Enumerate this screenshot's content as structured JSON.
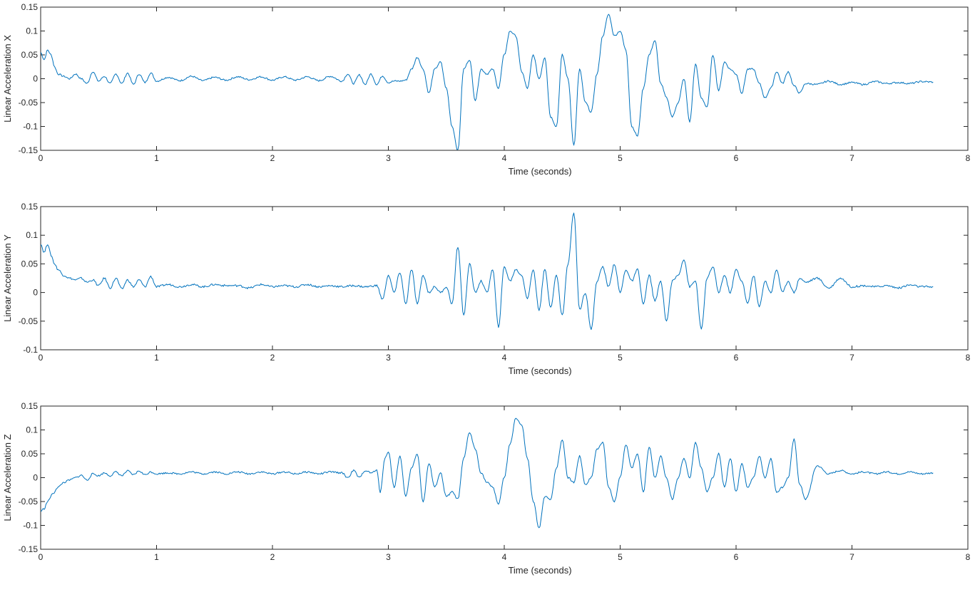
{
  "chart_data": [
    {
      "type": "line",
      "xlabel": "Time (seconds)",
      "ylabel": "Linear Acceleration X",
      "xlim": [
        0,
        8
      ],
      "ylim": [
        -0.15,
        0.15
      ],
      "xticks": [
        "0",
        "1",
        "2",
        "3",
        "4",
        "5",
        "6",
        "7",
        "8"
      ],
      "yticks": [
        "-0.15",
        "-0.1",
        "-0.05",
        "0",
        "0.05",
        "0.1",
        "0.15"
      ],
      "grid": false,
      "line_color": "#0072BD",
      "series": [
        {
          "x": [
            0,
            0.03,
            0.06,
            0.09,
            0.12,
            0.15,
            0.2,
            0.25,
            0.3,
            0.35,
            0.4,
            0.45,
            0.5,
            0.55,
            0.6,
            0.65,
            0.7,
            0.75,
            0.8,
            0.85,
            0.9,
            0.95,
            1.0,
            1.1,
            1.2,
            1.3,
            1.4,
            1.5,
            1.6,
            1.7,
            1.8,
            1.9,
            2.0,
            2.1,
            2.2,
            2.3,
            2.4,
            2.5,
            2.6,
            2.65,
            2.7,
            2.75,
            2.8,
            2.85,
            2.9,
            2.95,
            3.0,
            3.05,
            3.1,
            3.15,
            3.2,
            3.25,
            3.3,
            3.35,
            3.4,
            3.45,
            3.5,
            3.55,
            3.6,
            3.65,
            3.7,
            3.75,
            3.8,
            3.85,
            3.9,
            3.95,
            4.0,
            4.05,
            4.1,
            4.15,
            4.2,
            4.25,
            4.3,
            4.35,
            4.4,
            4.45,
            4.5,
            4.55,
            4.6,
            4.65,
            4.7,
            4.75,
            4.8,
            4.85,
            4.9,
            4.95,
            5.0,
            5.05,
            5.1,
            5.15,
            5.2,
            5.25,
            5.3,
            5.35,
            5.4,
            5.45,
            5.5,
            5.55,
            5.6,
            5.65,
            5.7,
            5.75,
            5.8,
            5.85,
            5.9,
            5.95,
            6.0,
            6.05,
            6.1,
            6.15,
            6.2,
            6.25,
            6.3,
            6.35,
            6.4,
            6.45,
            6.5,
            6.55,
            6.6,
            6.7,
            6.8,
            6.9,
            7.0,
            7.1,
            7.2,
            7.3,
            7.4,
            7.5,
            7.6,
            7.7
          ],
          "y": [
            0.055,
            0.04,
            0.06,
            0.05,
            0.025,
            0.01,
            0.005,
            0.0,
            0.01,
            0.0,
            -0.01,
            0.015,
            -0.005,
            0.005,
            -0.01,
            0.01,
            -0.01,
            0.012,
            -0.012,
            0.01,
            -0.008,
            0.012,
            -0.005,
            0.003,
            -0.004,
            0.005,
            -0.004,
            0.003,
            -0.003,
            0.004,
            -0.002,
            0.004,
            -0.003,
            0.004,
            -0.003,
            0.004,
            -0.004,
            0.005,
            -0.005,
            0.01,
            -0.01,
            0.008,
            -0.012,
            0.01,
            -0.012,
            0.006,
            -0.008,
            -0.005,
            -0.005,
            -0.003,
            0.02,
            0.045,
            0.02,
            -0.03,
            0.02,
            0.035,
            -0.02,
            -0.1,
            -0.15,
            0.02,
            0.04,
            -0.045,
            0.02,
            0.01,
            0.02,
            -0.02,
            0.05,
            0.1,
            0.09,
            0.015,
            -0.02,
            0.05,
            0.0,
            0.045,
            -0.08,
            -0.1,
            0.05,
            0.0,
            -0.14,
            0.02,
            -0.05,
            -0.07,
            0.01,
            0.09,
            0.135,
            0.09,
            0.1,
            0.06,
            -0.1,
            -0.12,
            -0.02,
            0.05,
            0.08,
            -0.01,
            -0.04,
            -0.08,
            -0.05,
            0.0,
            -0.09,
            0.03,
            -0.04,
            -0.06,
            0.05,
            -0.025,
            0.035,
            0.02,
            0.01,
            -0.03,
            0.02,
            0.02,
            -0.01,
            -0.04,
            -0.02,
            0.015,
            -0.01,
            0.015,
            -0.015,
            -0.03,
            -0.01,
            -0.012,
            -0.005,
            -0.012,
            -0.008,
            -0.012,
            -0.006,
            -0.01,
            -0.008,
            -0.01,
            -0.006,
            -0.007
          ]
        }
      ]
    },
    {
      "type": "line",
      "xlabel": "Time (seconds)",
      "ylabel": "Linear Acceleration Y",
      "xlim": [
        0,
        8
      ],
      "ylim": [
        -0.1,
        0.15
      ],
      "xticks": [
        "0",
        "1",
        "2",
        "3",
        "4",
        "5",
        "6",
        "7",
        "8"
      ],
      "yticks": [
        "-0.1",
        "-0.05",
        "0",
        "0.05",
        "0.1",
        "0.15"
      ],
      "grid": false,
      "line_color": "#0072BD",
      "series": [
        {
          "x": [
            0,
            0.03,
            0.06,
            0.09,
            0.12,
            0.15,
            0.2,
            0.25,
            0.3,
            0.35,
            0.4,
            0.45,
            0.5,
            0.55,
            0.6,
            0.65,
            0.7,
            0.75,
            0.8,
            0.85,
            0.9,
            0.95,
            1.0,
            1.1,
            1.2,
            1.3,
            1.4,
            1.5,
            1.6,
            1.7,
            1.8,
            1.9,
            2.0,
            2.1,
            2.2,
            2.3,
            2.4,
            2.5,
            2.6,
            2.7,
            2.8,
            2.9,
            2.95,
            3.0,
            3.05,
            3.1,
            3.15,
            3.2,
            3.25,
            3.3,
            3.35,
            3.4,
            3.45,
            3.5,
            3.55,
            3.6,
            3.65,
            3.7,
            3.75,
            3.8,
            3.85,
            3.9,
            3.95,
            4.0,
            4.05,
            4.1,
            4.15,
            4.2,
            4.25,
            4.3,
            4.35,
            4.4,
            4.45,
            4.5,
            4.55,
            4.6,
            4.65,
            4.7,
            4.75,
            4.8,
            4.85,
            4.9,
            4.95,
            5.0,
            5.05,
            5.1,
            5.15,
            5.2,
            5.25,
            5.3,
            5.35,
            5.4,
            5.45,
            5.5,
            5.55,
            5.6,
            5.65,
            5.7,
            5.75,
            5.8,
            5.85,
            5.9,
            5.95,
            6.0,
            6.05,
            6.1,
            6.15,
            6.2,
            6.25,
            6.3,
            6.35,
            6.4,
            6.45,
            6.5,
            6.55,
            6.6,
            6.7,
            6.8,
            6.9,
            7.0,
            7.1,
            7.2,
            7.3,
            7.4,
            7.5,
            7.6,
            7.7
          ],
          "y": [
            0.085,
            0.07,
            0.085,
            0.065,
            0.05,
            0.04,
            0.03,
            0.025,
            0.022,
            0.025,
            0.018,
            0.022,
            0.012,
            0.025,
            0.008,
            0.025,
            0.006,
            0.022,
            0.01,
            0.022,
            0.01,
            0.028,
            0.01,
            0.014,
            0.01,
            0.014,
            0.01,
            0.014,
            0.012,
            0.012,
            0.008,
            0.014,
            0.01,
            0.012,
            0.01,
            0.014,
            0.01,
            0.012,
            0.01,
            0.012,
            0.01,
            0.012,
            -0.012,
            0.03,
            0.0,
            0.035,
            -0.02,
            0.04,
            -0.02,
            0.03,
            0.0,
            0.01,
            0.0,
            0.01,
            -0.02,
            0.08,
            -0.04,
            0.05,
            0.0,
            0.02,
            0.0,
            0.04,
            -0.06,
            0.045,
            0.02,
            0.04,
            0.03,
            -0.01,
            0.04,
            -0.03,
            0.04,
            -0.025,
            0.03,
            -0.04,
            0.05,
            0.14,
            -0.03,
            0.0,
            -0.065,
            0.02,
            0.045,
            0.01,
            0.05,
            0.0,
            0.04,
            0.02,
            0.04,
            -0.02,
            0.03,
            -0.015,
            0.02,
            -0.05,
            0.02,
            0.03,
            0.058,
            0.01,
            0.02,
            -0.065,
            0.025,
            0.045,
            0.0,
            0.03,
            0.0,
            0.04,
            0.02,
            -0.02,
            0.03,
            -0.025,
            0.02,
            0.0,
            0.04,
            0.0,
            0.02,
            0.0,
            0.025,
            0.018,
            0.025,
            0.008,
            0.025,
            0.01,
            0.012,
            0.01,
            0.012,
            0.008,
            0.013,
            0.01,
            0.01
          ]
        }
      ]
    },
    {
      "type": "line",
      "xlabel": "Time (seconds)",
      "ylabel": "Linear Acceleration Z",
      "xlim": [
        0,
        8
      ],
      "ylim": [
        -0.15,
        0.15
      ],
      "xticks": [
        "0",
        "1",
        "2",
        "3",
        "4",
        "5",
        "6",
        "7",
        "8"
      ],
      "yticks": [
        "-0.15",
        "-0.1",
        "-0.05",
        "0",
        "0.05",
        "0.1",
        "0.15"
      ],
      "grid": false,
      "line_color": "#0072BD",
      "series": [
        {
          "x": [
            0,
            0.03,
            0.06,
            0.1,
            0.15,
            0.2,
            0.25,
            0.3,
            0.35,
            0.4,
            0.45,
            0.5,
            0.55,
            0.6,
            0.65,
            0.7,
            0.75,
            0.8,
            0.85,
            0.9,
            0.95,
            1.0,
            1.1,
            1.2,
            1.3,
            1.4,
            1.5,
            1.6,
            1.7,
            1.8,
            1.9,
            2.0,
            2.1,
            2.2,
            2.3,
            2.4,
            2.5,
            2.6,
            2.65,
            2.7,
            2.75,
            2.8,
            2.85,
            2.9,
            2.93,
            2.97,
            3.0,
            3.05,
            3.1,
            3.15,
            3.2,
            3.25,
            3.3,
            3.35,
            3.4,
            3.45,
            3.5,
            3.55,
            3.6,
            3.65,
            3.7,
            3.75,
            3.8,
            3.85,
            3.9,
            3.95,
            4.0,
            4.05,
            4.1,
            4.15,
            4.2,
            4.25,
            4.3,
            4.35,
            4.4,
            4.45,
            4.5,
            4.55,
            4.6,
            4.65,
            4.7,
            4.75,
            4.8,
            4.85,
            4.9,
            4.95,
            5.0,
            5.05,
            5.1,
            5.15,
            5.2,
            5.25,
            5.3,
            5.35,
            5.4,
            5.45,
            5.5,
            5.55,
            5.6,
            5.65,
            5.7,
            5.75,
            5.8,
            5.85,
            5.9,
            5.95,
            6.0,
            6.05,
            6.1,
            6.15,
            6.2,
            6.25,
            6.3,
            6.35,
            6.4,
            6.45,
            6.5,
            6.55,
            6.6,
            6.7,
            6.8,
            6.9,
            7.0,
            7.1,
            7.2,
            7.3,
            7.4,
            7.5,
            7.6,
            7.7
          ],
          "y": [
            -0.07,
            -0.065,
            -0.05,
            -0.035,
            -0.02,
            -0.01,
            -0.005,
            0.0,
            0.005,
            -0.005,
            0.008,
            0.004,
            0.01,
            0.004,
            0.012,
            0.004,
            0.014,
            0.006,
            0.014,
            0.006,
            0.012,
            0.008,
            0.01,
            0.008,
            0.012,
            0.008,
            0.012,
            0.008,
            0.012,
            0.008,
            0.012,
            0.008,
            0.012,
            0.008,
            0.012,
            0.008,
            0.012,
            0.01,
            0.0,
            0.015,
            0.0,
            0.015,
            0.01,
            0.015,
            -0.03,
            0.04,
            0.055,
            -0.02,
            0.045,
            -0.04,
            0.02,
            0.05,
            -0.05,
            0.03,
            -0.02,
            0.01,
            -0.04,
            -0.03,
            -0.045,
            0.04,
            0.095,
            0.06,
            0.01,
            -0.01,
            -0.02,
            -0.055,
            0.0,
            0.07,
            0.125,
            0.11,
            0.04,
            -0.05,
            -0.105,
            -0.04,
            -0.045,
            0.02,
            0.08,
            0.0,
            -0.01,
            0.045,
            -0.015,
            0.0,
            0.06,
            0.075,
            -0.02,
            -0.05,
            0.0,
            0.07,
            0.02,
            0.05,
            -0.03,
            0.065,
            0.0,
            0.045,
            0.0,
            -0.045,
            0.0,
            0.04,
            0.0,
            0.075,
            0.02,
            -0.03,
            0.0,
            0.05,
            -0.02,
            0.04,
            -0.03,
            0.03,
            -0.02,
            0.0,
            0.045,
            0.0,
            0.04,
            -0.03,
            -0.02,
            0.0,
            0.08,
            -0.015,
            -0.045,
            0.025,
            0.008,
            0.015,
            0.008,
            0.012,
            0.008,
            0.012,
            0.008,
            0.012,
            0.008,
            0.01
          ]
        }
      ]
    }
  ]
}
